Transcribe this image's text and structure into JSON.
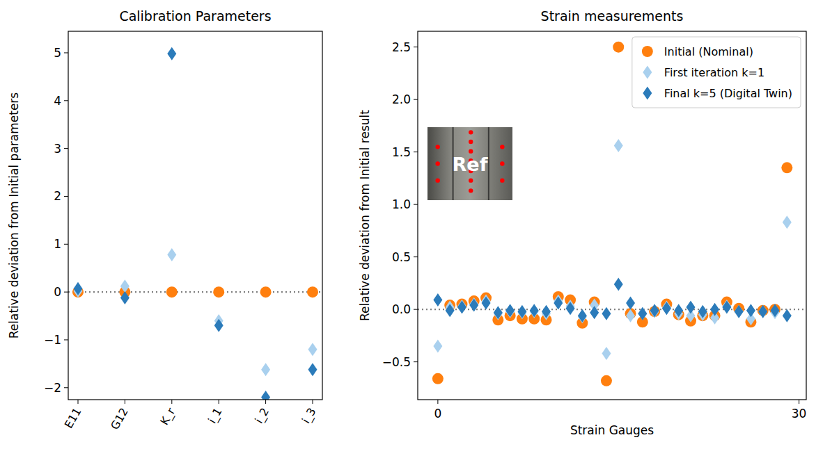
{
  "chart_data": [
    {
      "type": "scatter",
      "title": "Calibration Parameters",
      "y_label": "Relative deviation from Initial parameters",
      "categories": [
        "E11",
        "G12",
        "K_r",
        "i_1",
        "i_2",
        "i_3"
      ],
      "ylim": [
        -2.25,
        5.45
      ],
      "yticks": [
        {
          "value": -2,
          "label": "−2"
        },
        {
          "value": -1,
          "label": "−1"
        },
        0,
        1,
        2,
        3,
        4,
        5
      ],
      "reference_lines": [
        0
      ],
      "series": [
        {
          "color": "#ff7f0e",
          "marker": "circle",
          "values": [
            0,
            0,
            0,
            0,
            0,
            0
          ]
        },
        {
          "color": "#a9d0ee",
          "marker": "diamond",
          "values": [
            0.02,
            0.12,
            0.78,
            -0.6,
            -1.62,
            -1.2
          ]
        },
        {
          "color": "#2b7bba",
          "marker": "diamond",
          "values": [
            0.07,
            -0.12,
            4.98,
            -0.7,
            -2.2,
            -1.62
          ]
        }
      ]
    },
    {
      "type": "scatter",
      "title": "Strain measurements",
      "x_label": "Strain Gauges",
      "y_label": "Relative deviation from Initial result",
      "annotations": [
        "Ref"
      ],
      "legend": "upper right",
      "x": [
        0,
        1,
        2,
        3,
        4,
        5,
        6,
        7,
        8,
        9,
        10,
        11,
        12,
        13,
        14,
        15,
        16,
        17,
        18,
        19,
        20,
        21,
        22,
        23,
        24,
        25,
        26,
        27,
        28,
        29
      ],
      "xlim": [
        -1.67,
        30.6
      ],
      "xticks": [
        0,
        30
      ],
      "ylim": [
        -0.86,
        2.65
      ],
      "yticks": [
        {
          "value": -0.5,
          "label": "−0.5"
        },
        {
          "value": 0,
          "label": "0.0"
        },
        {
          "value": 0.5,
          "label": "0.5"
        },
        {
          "value": 1,
          "label": "1.0"
        },
        {
          "value": 1.5,
          "label": "1.5"
        },
        {
          "value": 2,
          "label": "2.0"
        },
        {
          "value": 2.5,
          "label": "2.5"
        }
      ],
      "reference_lines": [
        0
      ],
      "series": [
        {
          "name": "Initial (Nominal)",
          "color": "#ff7f0e",
          "marker": "circle",
          "values": [
            -0.66,
            0.04,
            0.05,
            0.08,
            0.11,
            -0.1,
            -0.06,
            -0.09,
            -0.09,
            -0.1,
            0.12,
            0.09,
            -0.13,
            0.07,
            -0.68,
            2.5,
            -0.04,
            -0.12,
            -0.02,
            0.05,
            -0.05,
            -0.11,
            -0.06,
            -0.06,
            0.07,
            0.01,
            -0.12,
            -0.01,
            0.0,
            1.35
          ]
        },
        {
          "name": "First iteration k=1",
          "color": "#a9d0ee",
          "marker": "diamond",
          "values": [
            -0.35,
            0.02,
            0.03,
            0.05,
            0.08,
            -0.04,
            -0.02,
            -0.03,
            -0.02,
            -0.04,
            0.08,
            0.03,
            -0.07,
            0.04,
            -0.42,
            1.56,
            -0.06,
            -0.04,
            -0.02,
            0.02,
            -0.04,
            -0.06,
            -0.05,
            -0.08,
            0.03,
            -0.02,
            -0.09,
            -0.02,
            -0.03,
            0.83
          ]
        },
        {
          "name": "Final k=5 (Digital Twin)",
          "color": "#2b7bba",
          "marker": "diamond",
          "values": [
            0.09,
            -0.01,
            0.02,
            0.04,
            0.06,
            -0.03,
            -0.01,
            -0.02,
            -0.01,
            -0.02,
            0.06,
            0.01,
            -0.06,
            -0.03,
            -0.04,
            0.24,
            0.06,
            -0.04,
            -0.01,
            0.01,
            -0.01,
            0.02,
            -0.02,
            0.0,
            0.02,
            -0.02,
            -0.01,
            -0.02,
            -0.01,
            -0.06
          ]
        }
      ]
    }
  ]
}
